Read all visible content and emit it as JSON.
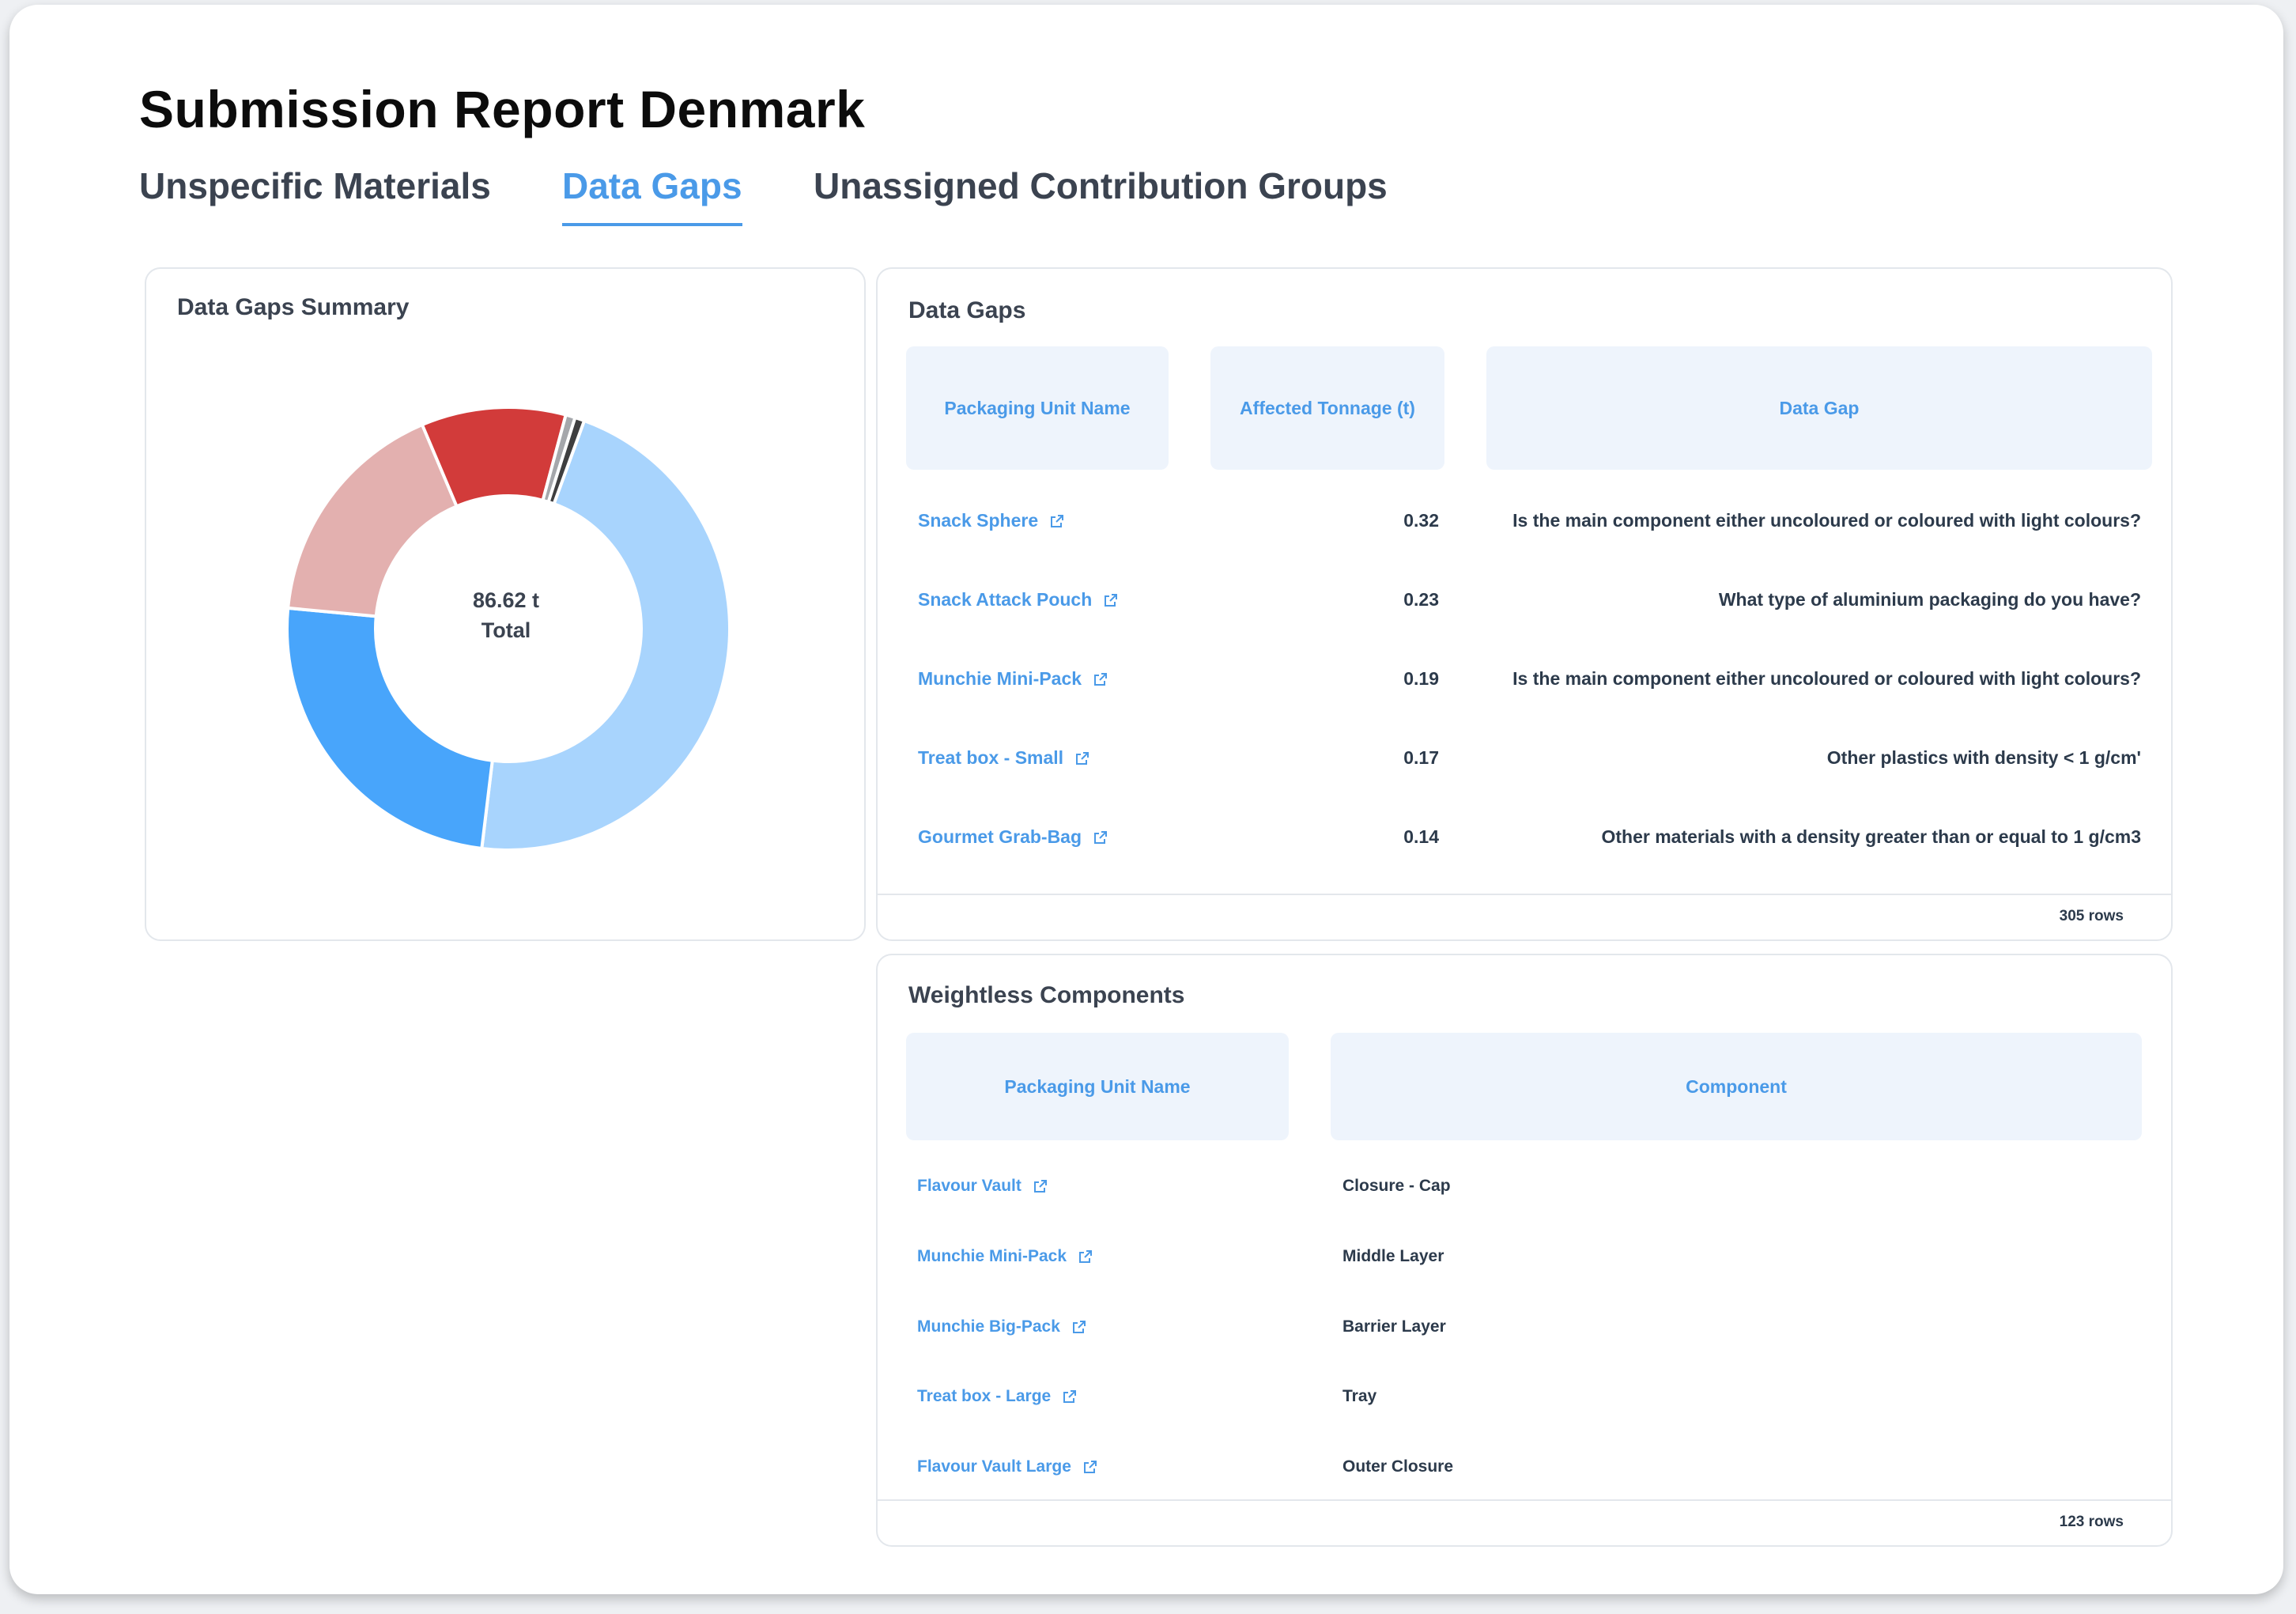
{
  "page": {
    "title": "Submission Report Denmark"
  },
  "tabs": [
    {
      "label": "Unspecific Materials",
      "active": false
    },
    {
      "label": "Data Gaps",
      "active": true
    },
    {
      "label": "Unassigned Contribution Groups",
      "active": false
    }
  ],
  "summary": {
    "title": "Data Gaps Summary",
    "center_value": "86.62 t",
    "center_label": "Total"
  },
  "chart_data": {
    "type": "pie",
    "values": [
      40.0,
      21.2,
      14.8,
      9.1,
      0.6,
      0.6
    ],
    "colors": [
      "#a8d4fd",
      "#48a5fb",
      "#e3b0af",
      "#d23b3a",
      "#a5a7ab",
      "#3e3e3f"
    ]
  },
  "data_gaps": {
    "title": "Data Gaps",
    "headers": [
      "Packaging Unit Name",
      "Affected Tonnage (t)",
      "Data Gap"
    ],
    "rows": [
      {
        "name": "Snack Sphere",
        "tonnage": "0.32",
        "gap": "Is the main component either uncoloured or coloured with light colours?"
      },
      {
        "name": "Snack Attack Pouch",
        "tonnage": "0.23",
        "gap": "What type of aluminium packaging do you have?"
      },
      {
        "name": "Munchie Mini-Pack",
        "tonnage": "0.19",
        "gap": "Is the main component either uncoloured or coloured with light colours?"
      },
      {
        "name": "Treat box - Small",
        "tonnage": "0.17",
        "gap": "Other plastics with density < 1 g/cm'"
      },
      {
        "name": "Gourmet Grab-Bag",
        "tonnage": "0.14",
        "gap": "Other materials with a density greater than or equal to 1 g/cm3"
      }
    ],
    "row_count": "305 rows"
  },
  "weightless": {
    "title": "Weightless Components",
    "headers": [
      "Packaging Unit Name",
      "Component"
    ],
    "rows": [
      {
        "name": "Flavour Vault",
        "component": "Closure - Cap"
      },
      {
        "name": "Munchie Mini-Pack",
        "component": "Middle Layer"
      },
      {
        "name": "Munchie Big-Pack",
        "component": "Barrier Layer"
      },
      {
        "name": "Treat box - Large",
        "component": "Tray"
      },
      {
        "name": "Flavour Vault Large",
        "component": "Outer Closure"
      }
    ],
    "row_count": "123 rows"
  },
  "icons": {
    "row_link": "external-link-icon"
  }
}
